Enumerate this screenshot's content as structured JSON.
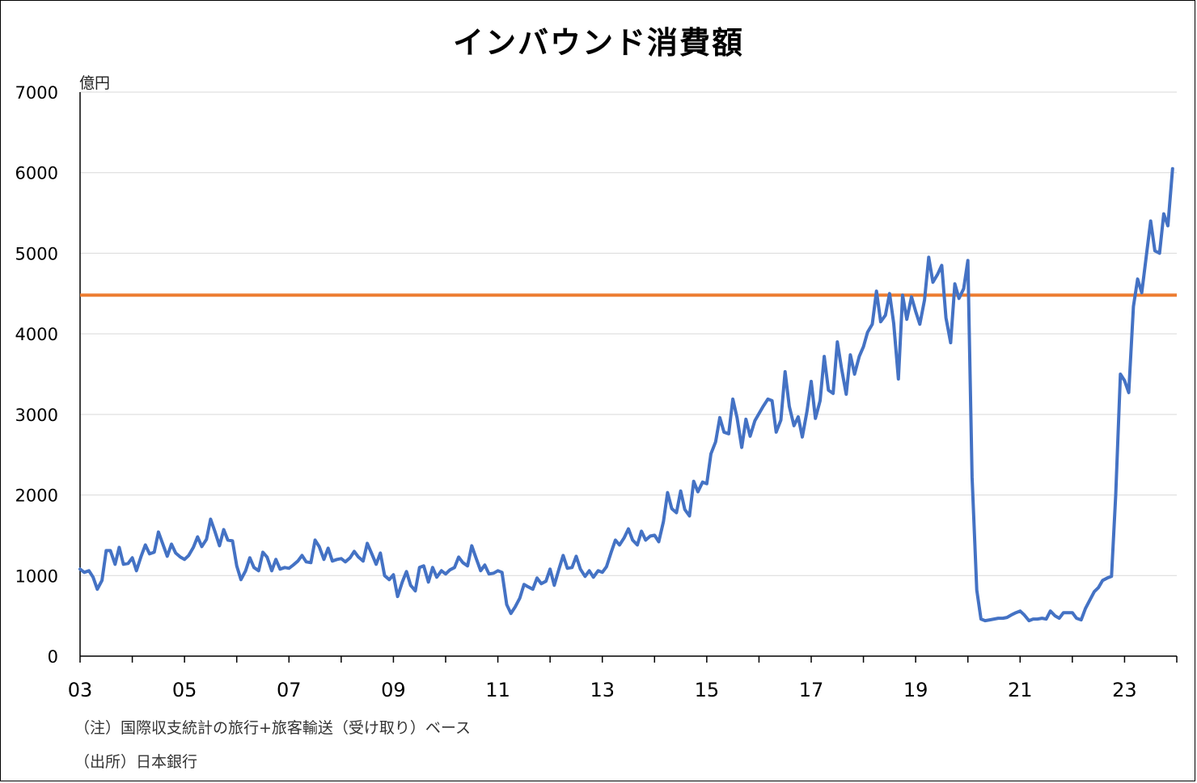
{
  "chart_data": {
    "type": "line",
    "title": "インバウンド消費額",
    "ylabel": "億円",
    "ylim": [
      0,
      7000
    ],
    "yticks": [
      "0",
      "1000",
      "2000",
      "3000",
      "4000",
      "5000",
      "6000",
      "7000"
    ],
    "xlim": [
      2003,
      2024
    ],
    "xticks": [
      "03",
      "05",
      "07",
      "09",
      "11",
      "13",
      "15",
      "17",
      "19",
      "21",
      "23"
    ],
    "grid": "horizontal",
    "reference_line": {
      "value": 4480,
      "color": "#ED7D31"
    },
    "series": [
      {
        "color": "#4472C4",
        "x": [
          2003.0,
          2003.08,
          2003.17,
          2003.25,
          2003.33,
          2003.42,
          2003.5,
          2003.58,
          2003.67,
          2003.75,
          2003.83,
          2003.92,
          2004.0,
          2004.08,
          2004.17,
          2004.25,
          2004.33,
          2004.42,
          2004.5,
          2004.58,
          2004.67,
          2004.75,
          2004.83,
          2004.92,
          2005.0,
          2005.08,
          2005.17,
          2005.25,
          2005.33,
          2005.42,
          2005.5,
          2005.58,
          2005.67,
          2005.75,
          2005.83,
          2005.92,
          2006.0,
          2006.08,
          2006.17,
          2006.25,
          2006.33,
          2006.42,
          2006.5,
          2006.58,
          2006.67,
          2006.75,
          2006.83,
          2006.92,
          2007.0,
          2007.08,
          2007.17,
          2007.25,
          2007.33,
          2007.42,
          2007.5,
          2007.58,
          2007.67,
          2007.75,
          2007.83,
          2007.92,
          2008.0,
          2008.08,
          2008.17,
          2008.25,
          2008.33,
          2008.42,
          2008.5,
          2008.58,
          2008.67,
          2008.75,
          2008.83,
          2008.92,
          2009.0,
          2009.08,
          2009.17,
          2009.25,
          2009.33,
          2009.42,
          2009.5,
          2009.58,
          2009.67,
          2009.75,
          2009.83,
          2009.92,
          2010.0,
          2010.08,
          2010.17,
          2010.25,
          2010.33,
          2010.42,
          2010.5,
          2010.58,
          2010.67,
          2010.75,
          2010.83,
          2010.92,
          2011.0,
          2011.08,
          2011.17,
          2011.25,
          2011.33,
          2011.42,
          2011.5,
          2011.58,
          2011.67,
          2011.75,
          2011.83,
          2011.92,
          2012.0,
          2012.08,
          2012.17,
          2012.25,
          2012.33,
          2012.42,
          2012.5,
          2012.58,
          2012.67,
          2012.75,
          2012.83,
          2012.92,
          2013.0,
          2013.08,
          2013.17,
          2013.25,
          2013.33,
          2013.42,
          2013.5,
          2013.58,
          2013.67,
          2013.75,
          2013.83,
          2013.92,
          2014.0,
          2014.08,
          2014.17,
          2014.25,
          2014.33,
          2014.42,
          2014.5,
          2014.58,
          2014.67,
          2014.75,
          2014.83,
          2014.92,
          2015.0,
          2015.08,
          2015.17,
          2015.25,
          2015.33,
          2015.42,
          2015.5,
          2015.58,
          2015.67,
          2015.75,
          2015.83,
          2015.92,
          2016.0,
          2016.08,
          2016.17,
          2016.25,
          2016.33,
          2016.42,
          2016.5,
          2016.58,
          2016.67,
          2016.75,
          2016.83,
          2016.92,
          2017.0,
          2017.08,
          2017.17,
          2017.25,
          2017.33,
          2017.42,
          2017.5,
          2017.58,
          2017.67,
          2017.75,
          2017.83,
          2017.92,
          2018.0,
          2018.08,
          2018.17,
          2018.25,
          2018.33,
          2018.42,
          2018.5,
          2018.58,
          2018.67,
          2018.75,
          2018.83,
          2018.92,
          2019.0,
          2019.08,
          2019.17,
          2019.25,
          2019.33,
          2019.42,
          2019.5,
          2019.58,
          2019.67,
          2019.75,
          2019.83,
          2019.92,
          2020.0,
          2020.08,
          2020.17,
          2020.25,
          2020.33,
          2020.42,
          2020.5,
          2020.58,
          2020.67,
          2020.75,
          2020.83,
          2020.92,
          2021.0,
          2021.08,
          2021.17,
          2021.25,
          2021.33,
          2021.42,
          2021.5,
          2021.58,
          2021.67,
          2021.75,
          2021.83,
          2021.92,
          2022.0,
          2022.08,
          2022.17,
          2022.25,
          2022.33,
          2022.42,
          2022.5,
          2022.58,
          2022.67,
          2022.75,
          2022.83,
          2022.92,
          2023.0,
          2023.08,
          2023.17,
          2023.25,
          2023.33,
          2023.42,
          2023.5,
          2023.58,
          2023.67,
          2023.75,
          2023.83,
          2023.92
        ],
        "values": [
          1080,
          1040,
          1060,
          980,
          830,
          940,
          1310,
          1310,
          1140,
          1350,
          1140,
          1150,
          1220,
          1060,
          1240,
          1380,
          1270,
          1290,
          1540,
          1400,
          1240,
          1390,
          1280,
          1230,
          1200,
          1250,
          1350,
          1480,
          1360,
          1450,
          1700,
          1550,
          1370,
          1570,
          1440,
          1430,
          1120,
          950,
          1060,
          1220,
          1100,
          1060,
          1290,
          1230,
          1060,
          1200,
          1080,
          1100,
          1090,
          1130,
          1180,
          1250,
          1170,
          1160,
          1440,
          1360,
          1200,
          1340,
          1180,
          1200,
          1210,
          1170,
          1220,
          1300,
          1230,
          1180,
          1400,
          1280,
          1140,
          1280,
          1000,
          950,
          1010,
          740,
          920,
          1050,
          880,
          810,
          1100,
          1120,
          920,
          1100,
          980,
          1060,
          1020,
          1070,
          1100,
          1230,
          1160,
          1120,
          1370,
          1220,
          1060,
          1130,
          1020,
          1030,
          1060,
          1040,
          640,
          530,
          610,
          720,
          890,
          860,
          830,
          970,
          900,
          930,
          1080,
          880,
          1080,
          1250,
          1090,
          1100,
          1240,
          1080,
          990,
          1060,
          980,
          1060,
          1040,
          1110,
          1290,
          1440,
          1380,
          1470,
          1580,
          1440,
          1380,
          1550,
          1440,
          1490,
          1500,
          1420,
          1670,
          2030,
          1830,
          1780,
          2050,
          1820,
          1740,
          2170,
          2040,
          2160,
          2140,
          2510,
          2660,
          2960,
          2780,
          2760,
          3190,
          2960,
          2590,
          2940,
          2730,
          2920,
          3010,
          3100,
          3190,
          3170,
          2780,
          2930,
          3530,
          3100,
          2860,
          2970,
          2720,
          3040,
          3410,
          2950,
          3170,
          3720,
          3300,
          3260,
          3900,
          3570,
          3250,
          3740,
          3500,
          3720,
          3840,
          4020,
          4120,
          4530,
          4150,
          4230,
          4500,
          4130,
          3440,
          4480,
          4180,
          4460,
          4280,
          4120,
          4420,
          4950,
          4640,
          4740,
          4850,
          4200,
          3890,
          4620,
          4440,
          4560,
          4910,
          2220,
          820,
          460,
          440,
          450,
          460,
          470,
          470,
          480,
          510,
          540,
          560,
          510,
          440,
          460,
          460,
          470,
          460,
          560,
          500,
          470,
          540,
          540,
          540,
          470,
          450,
          590,
          690,
          800,
          850,
          940,
          970,
          990,
          2000,
          3500,
          3420,
          3270,
          4340,
          4680,
          4510,
          4980,
          5400,
          5030,
          5000,
          5490,
          5340,
          6050
        ]
      }
    ]
  },
  "notes": {
    "note1": "（注）国際収支統計の旅行+旅客輸送（受け取り）ベース",
    "note2": "（出所）日本銀行"
  }
}
